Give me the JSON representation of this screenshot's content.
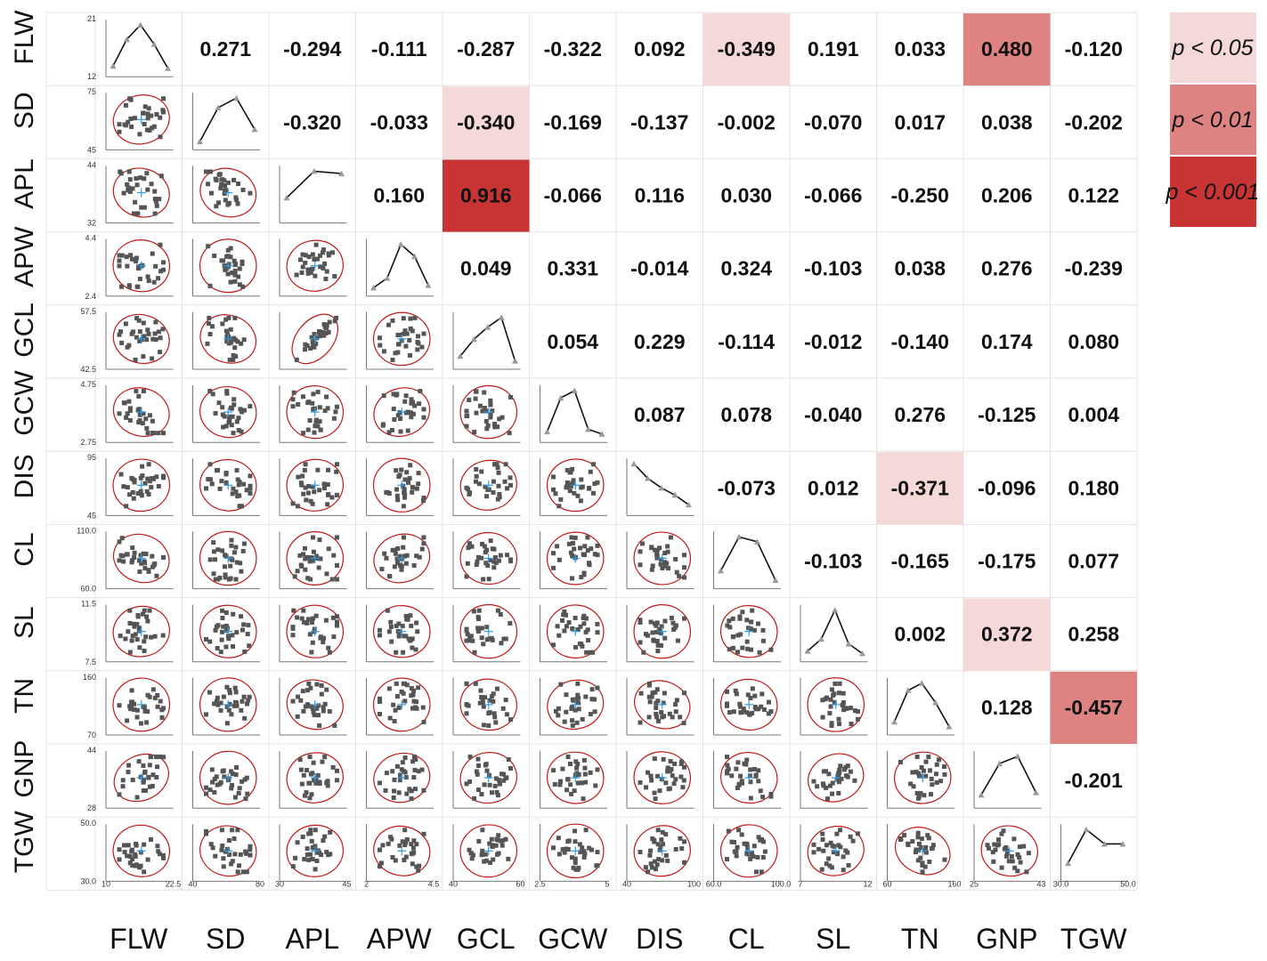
{
  "chart_data": {
    "type": "scatter-matrix",
    "variables": [
      "FLW",
      "SD",
      "APL",
      "APW",
      "GCL",
      "GCW",
      "DIS",
      "CL",
      "SL",
      "TN",
      "GNP",
      "TGW"
    ],
    "correlations": [
      [
        null,
        0.271,
        -0.294,
        -0.111,
        -0.287,
        -0.322,
        0.092,
        -0.349,
        0.191,
        0.033,
        0.48,
        -0.12
      ],
      [
        0.271,
        null,
        -0.32,
        -0.033,
        -0.34,
        -0.169,
        -0.137,
        -0.002,
        -0.07,
        0.017,
        0.038,
        -0.202
      ],
      [
        -0.294,
        -0.32,
        null,
        0.16,
        0.916,
        -0.066,
        0.116,
        0.03,
        -0.066,
        -0.25,
        0.206,
        0.122
      ],
      [
        -0.111,
        -0.033,
        0.16,
        null,
        0.049,
        0.331,
        -0.014,
        0.324,
        -0.103,
        0.038,
        0.276,
        -0.239
      ],
      [
        -0.287,
        -0.34,
        0.916,
        0.049,
        null,
        0.054,
        0.229,
        -0.114,
        -0.012,
        -0.14,
        0.174,
        0.08
      ],
      [
        -0.322,
        -0.169,
        -0.066,
        0.331,
        0.054,
        null,
        0.087,
        0.078,
        -0.04,
        0.276,
        -0.125,
        0.004
      ],
      [
        0.092,
        -0.137,
        0.116,
        -0.014,
        0.229,
        0.087,
        null,
        -0.073,
        0.012,
        -0.371,
        -0.096,
        0.18
      ],
      [
        -0.349,
        -0.002,
        0.03,
        0.324,
        -0.114,
        0.078,
        -0.073,
        null,
        -0.103,
        -0.165,
        -0.175,
        0.077
      ],
      [
        0.191,
        -0.07,
        -0.066,
        -0.103,
        -0.012,
        -0.04,
        0.012,
        -0.103,
        null,
        0.002,
        0.372,
        0.258
      ],
      [
        0.033,
        0.017,
        -0.25,
        0.038,
        -0.14,
        0.276,
        -0.371,
        -0.165,
        0.002,
        null,
        0.128,
        -0.457
      ],
      [
        0.48,
        0.038,
        0.206,
        0.276,
        0.174,
        -0.125,
        -0.096,
        -0.175,
        0.372,
        0.128,
        null,
        -0.201
      ],
      [
        -0.12,
        -0.202,
        0.122,
        -0.239,
        0.08,
        0.004,
        0.18,
        0.077,
        0.258,
        -0.457,
        -0.201,
        null
      ]
    ],
    "value_labels": [
      [
        null,
        "0.271",
        "-0.294",
        "-0.111",
        "-0.287",
        "-0.322",
        "0.092",
        "-0.349",
        "0.191",
        "0.033",
        "0.480",
        "-0.120"
      ],
      [
        null,
        null,
        "-0.320",
        "-0.033",
        "-0.340",
        "-0.169",
        "-0.137",
        "-0.002",
        "-0.070",
        "0.017",
        "0.038",
        "-0.202"
      ],
      [
        null,
        null,
        null,
        "0.160",
        "0.916",
        "-0.066",
        "0.116",
        "0.030",
        "-0.066",
        "-0.250",
        "0.206",
        "0.122"
      ],
      [
        null,
        null,
        null,
        null,
        "0.049",
        "0.331",
        "-0.014",
        "0.324",
        "-0.103",
        "0.038",
        "0.276",
        "-0.239"
      ],
      [
        null,
        null,
        null,
        null,
        null,
        "0.054",
        "0.229",
        "-0.114",
        "-0.012",
        "-0.140",
        "0.174",
        "0.080"
      ],
      [
        null,
        null,
        null,
        null,
        null,
        null,
        "0.087",
        "0.078",
        "-0.040",
        "0.276",
        "-0.125",
        "0.004"
      ],
      [
        null,
        null,
        null,
        null,
        null,
        null,
        null,
        "-0.073",
        "0.012",
        "-0.371",
        "-0.096",
        "0.180"
      ],
      [
        null,
        null,
        null,
        null,
        null,
        null,
        null,
        null,
        "-0.103",
        "-0.165",
        "-0.175",
        "0.077"
      ],
      [
        null,
        null,
        null,
        null,
        null,
        null,
        null,
        null,
        null,
        "0.002",
        "0.372",
        "0.258"
      ],
      [
        null,
        null,
        null,
        null,
        null,
        null,
        null,
        null,
        null,
        null,
        "0.128",
        "-0.457"
      ],
      [
        null,
        null,
        null,
        null,
        null,
        null,
        null,
        null,
        null,
        null,
        null,
        "-0.201"
      ],
      [
        null,
        null,
        null,
        null,
        null,
        null,
        null,
        null,
        null,
        null,
        null,
        null
      ]
    ],
    "significance": [
      [
        null,
        "",
        "",
        "",
        "",
        "",
        "",
        "p<0.05",
        "",
        "",
        "p<0.01",
        ""
      ],
      [
        null,
        null,
        "",
        "",
        "p<0.05",
        "",
        "",
        "",
        "",
        "",
        "",
        ""
      ],
      [
        null,
        null,
        null,
        "",
        "p<0.001",
        "",
        "",
        "",
        "",
        "",
        "",
        ""
      ],
      [
        null,
        null,
        null,
        null,
        "",
        "",
        "",
        "",
        "",
        "",
        "",
        ""
      ],
      [
        null,
        null,
        null,
        null,
        null,
        "",
        "",
        "",
        "",
        "",
        "",
        ""
      ],
      [
        null,
        null,
        null,
        null,
        null,
        null,
        "",
        "",
        "",
        "",
        "",
        ""
      ],
      [
        null,
        null,
        null,
        null,
        null,
        null,
        null,
        "",
        "",
        "p<0.05",
        "",
        ""
      ],
      [
        null,
        null,
        null,
        null,
        null,
        null,
        null,
        null,
        "",
        "",
        "",
        ""
      ],
      [
        null,
        null,
        null,
        null,
        null,
        null,
        null,
        null,
        null,
        "",
        "p<0.05",
        ""
      ],
      [
        null,
        null,
        null,
        null,
        null,
        null,
        null,
        null,
        null,
        null,
        "",
        "p<0.01"
      ],
      [
        null,
        null,
        null,
        null,
        null,
        null,
        null,
        null,
        null,
        null,
        null,
        ""
      ],
      [
        null,
        null,
        null,
        null,
        null,
        null,
        null,
        null,
        null,
        null,
        null,
        null
      ]
    ],
    "axis_ranges": [
      {
        "min": "12",
        "max": "21"
      },
      {
        "min": "45",
        "max": "75"
      },
      {
        "min": "32",
        "max": "44"
      },
      {
        "min": "2.4",
        "max": "4.4"
      },
      {
        "min": "42.5",
        "max": "57.5"
      },
      {
        "min": "2.75",
        "max": "4.75"
      },
      {
        "min": "45",
        "max": "95"
      },
      {
        "min": "60.0",
        "max": "110.0"
      },
      {
        "min": "7.5",
        "max": "11.5"
      },
      {
        "min": "70",
        "max": "160"
      },
      {
        "min": "28",
        "max": "44"
      },
      {
        "min": "30.0",
        "max": "50.0"
      }
    ],
    "x_axis_ticks": [
      [
        "10",
        "22.5"
      ],
      [
        "40",
        "80"
      ],
      [
        "30",
        "45"
      ],
      [
        "2",
        "4.5"
      ],
      [
        "40",
        "60"
      ],
      [
        "2.5",
        "5"
      ],
      [
        "40",
        "100"
      ],
      [
        "60.0",
        "100.0"
      ],
      [
        "7",
        "12"
      ],
      [
        "60",
        "160"
      ],
      [
        "25",
        "43"
      ],
      [
        "30.0",
        "50.0"
      ]
    ],
    "distributions": [
      [
        0.15,
        0.7,
        1.0,
        0.6,
        0.1
      ],
      [
        0.1,
        0.8,
        1.0,
        0.35
      ],
      [
        0.45,
        1.0,
        0.95
      ],
      [
        0.1,
        0.3,
        1.0,
        0.75,
        0.15
      ],
      [
        0.2,
        0.55,
        0.8,
        1.0,
        0.1
      ],
      [
        0.15,
        0.85,
        1.0,
        0.2,
        0.1
      ],
      [
        1.0,
        0.7,
        0.5,
        0.35,
        0.15
      ],
      [
        0.3,
        1.0,
        0.9,
        0.1
      ],
      [
        0.15,
        0.4,
        1.0,
        0.3,
        0.1
      ],
      [
        0.2,
        0.85,
        1.0,
        0.6,
        0.1
      ],
      [
        0.2,
        0.85,
        1.0,
        0.25
      ],
      [
        0.3,
        1.0,
        0.7,
        0.7
      ]
    ],
    "legend": [
      {
        "label": "p < 0.05",
        "color": "#f5d9d9"
      },
      {
        "label": "p < 0.01",
        "color": "#de8282"
      },
      {
        "label": "p < 0.001",
        "color": "#c83434"
      }
    ],
    "colors": {
      "ellipse": "#c01818",
      "point": "#555555",
      "mean_marker": "#3399dd",
      "grid": "#e4e4e4"
    }
  }
}
